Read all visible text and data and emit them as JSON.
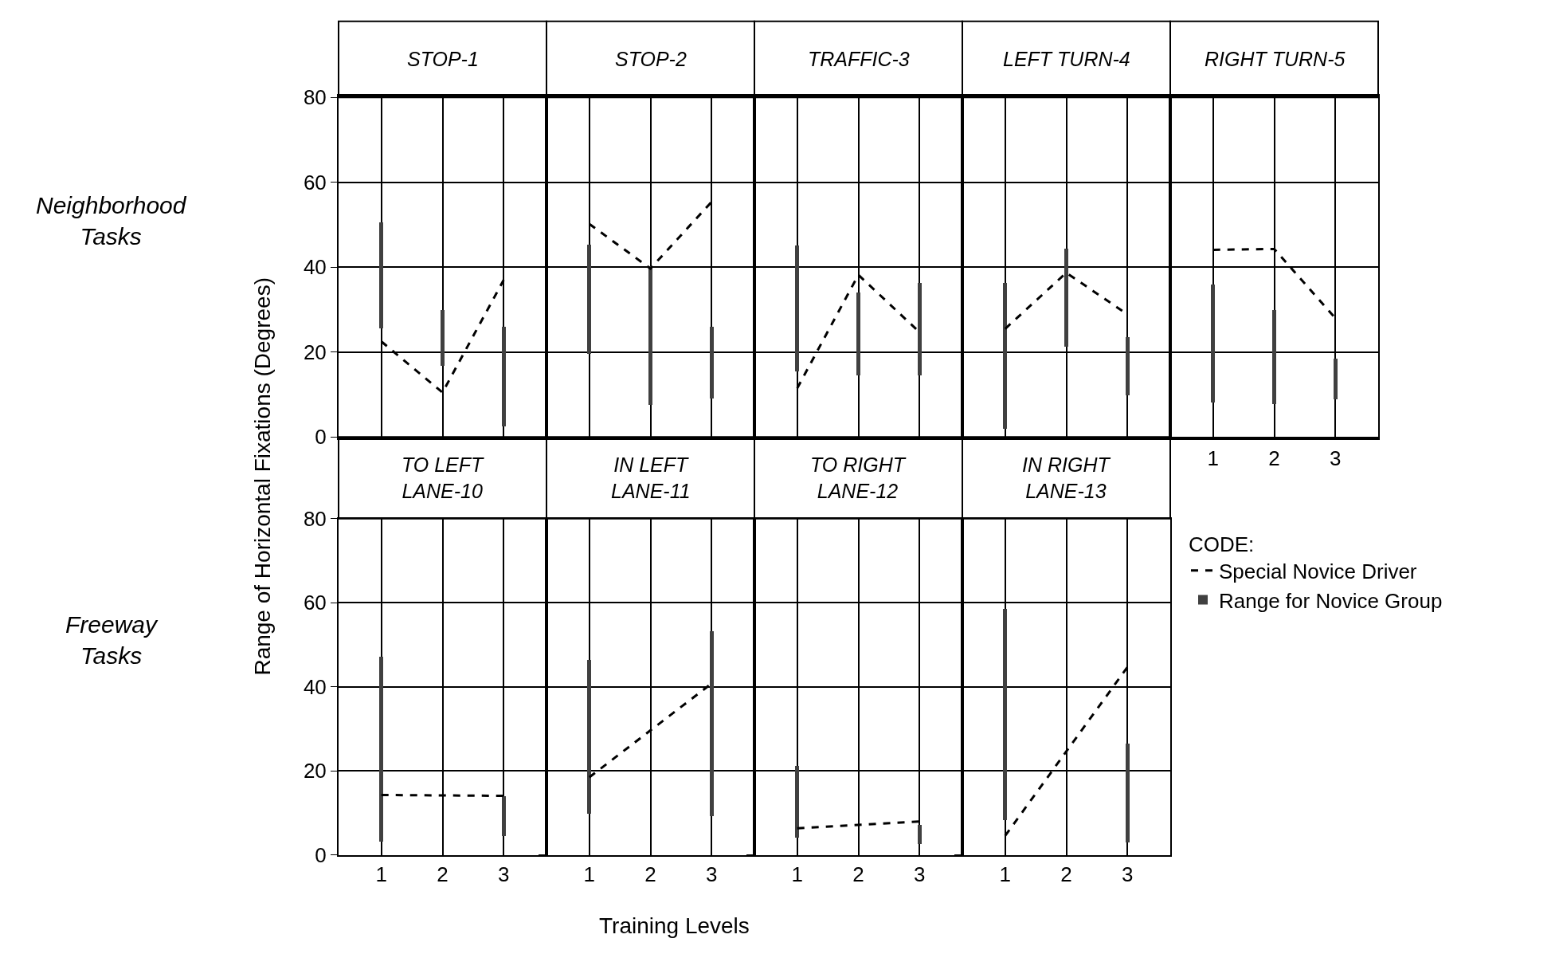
{
  "chart_data": [
    {
      "type": "bar",
      "title": "STOP-1",
      "ylabel": "Range of Horizontal Fixations (Degrees)",
      "annotations": [
        "Neighborhood\nTasks"
      ],
      "categories": [
        "1",
        "2",
        "3"
      ],
      "ylim": [
        0,
        80
      ],
      "yticks": [
        0,
        20,
        40,
        60,
        80
      ],
      "grid": true,
      "tick_labels": "y",
      "series": [
        {
          "color": "#404040",
          "base": [
            25.5,
            16.8,
            2.5
          ],
          "values": [
            25,
            13.1,
            23.5
          ]
        },
        {
          "type": "line",
          "color": "#000000",
          "line_style": "dashed",
          "marker": "none",
          "values": [
            22.5,
            10.5,
            37
          ]
        }
      ]
    },
    {
      "type": "bar",
      "title": "STOP-2",
      "categories": [
        "1",
        "2",
        "3"
      ],
      "ylim": [
        0,
        80
      ],
      "yticks": [
        0,
        20,
        40,
        60,
        80
      ],
      "grid": true,
      "tick_labels": false,
      "series": [
        {
          "color": "#404040",
          "base": [
            19.5,
            7.6,
            9.1
          ],
          "values": [
            25.8,
            32.6,
            16.8
          ]
        },
        {
          "type": "line",
          "color": "#000000",
          "line_style": "dashed",
          "marker": "none",
          "values": [
            50.2,
            39.7,
            55.4
          ]
        }
      ]
    },
    {
      "type": "bar",
      "title": "TRAFFIC-3",
      "categories": [
        "1",
        "2",
        "3"
      ],
      "ylim": [
        0,
        80
      ],
      "yticks": [
        0,
        20,
        40,
        60,
        80
      ],
      "grid": true,
      "tick_labels": false,
      "series": [
        {
          "color": "#404040",
          "base": [
            15.4,
            14.5,
            14.5
          ],
          "values": [
            29.7,
            19.5,
            21.8
          ]
        },
        {
          "type": "line",
          "color": "#000000",
          "line_style": "dashed",
          "marker": "none",
          "values": [
            11.5,
            38.2,
            24.7
          ]
        }
      ]
    },
    {
      "type": "bar",
      "title": "LEFT TURN-4",
      "categories": [
        "1",
        "2",
        "3"
      ],
      "ylim": [
        0,
        80
      ],
      "yticks": [
        0,
        20,
        40,
        60,
        80
      ],
      "grid": true,
      "tick_labels": false,
      "series": [
        {
          "color": "#404040",
          "base": [
            1.9,
            21.2,
            9.8
          ],
          "values": [
            34.3,
            23.1,
            13.7
          ]
        },
        {
          "type": "line",
          "color": "#000000",
          "line_style": "dashed",
          "marker": "none",
          "values": [
            25.5,
            38.7,
            28.9
          ]
        }
      ]
    },
    {
      "type": "bar",
      "title": "RIGHT TURN-5",
      "categories": [
        "1",
        "2",
        "3"
      ],
      "ylim": [
        0,
        80
      ],
      "yticks": [
        0,
        20,
        40,
        60,
        80
      ],
      "grid": true,
      "tick_labels": "x",
      "series": [
        {
          "color": "#404040",
          "base": [
            8.1,
            7.7,
            8.9
          ],
          "values": [
            27.7,
            22.1,
            9.6
          ]
        },
        {
          "type": "line",
          "color": "#000000",
          "line_style": "dashed",
          "marker": "none",
          "values": [
            44.1,
            44.3,
            28
          ]
        }
      ]
    },
    {
      "type": "bar",
      "title": "TO LEFT\nLANE-10",
      "annotations": [
        "Freeway\nTasks"
      ],
      "categories": [
        "1",
        "2",
        "3"
      ],
      "ylim": [
        0,
        80
      ],
      "yticks": [
        0,
        20,
        40,
        60,
        80
      ],
      "grid": true,
      "series": [
        {
          "color": "#404040",
          "base": [
            3.2,
            null,
            4.5
          ],
          "values": [
            44.1,
            null,
            9.6
          ]
        },
        {
          "type": "line",
          "color": "#000000",
          "line_style": "dashed",
          "marker": "none",
          "x": [
            "1",
            "3"
          ],
          "values": [
            14.3,
            14.1
          ]
        }
      ]
    },
    {
      "type": "bar",
      "title": "IN LEFT\nLANE-11",
      "xlabel": "Training Levels",
      "categories": [
        "1",
        "2",
        "3"
      ],
      "ylim": [
        0,
        80
      ],
      "yticks": [
        0,
        20,
        40,
        60,
        80
      ],
      "grid": true,
      "tick_labels": "x",
      "series": [
        {
          "color": "#404040",
          "base": [
            9.8,
            null,
            9.4
          ],
          "values": [
            36.7,
            null,
            43.8
          ]
        },
        {
          "type": "line",
          "color": "#000000",
          "line_style": "dashed",
          "marker": "none",
          "x": [
            "1",
            "3"
          ],
          "values": [
            18.5,
            40.8
          ]
        }
      ]
    },
    {
      "type": "bar",
      "title": "TO RIGHT\nLANE-12",
      "categories": [
        "1",
        "2",
        "3"
      ],
      "ylim": [
        0,
        80
      ],
      "yticks": [
        0,
        20,
        40,
        60,
        80
      ],
      "grid": true,
      "tick_labels": "x",
      "series": [
        {
          "color": "#404040",
          "base": [
            4.2,
            null,
            2.6
          ],
          "values": [
            17,
            null,
            4.7
          ]
        },
        {
          "type": "line",
          "color": "#000000",
          "line_style": "dashed",
          "marker": "none",
          "x": [
            "1",
            "3"
          ],
          "values": [
            6.4,
            8
          ]
        }
      ]
    },
    {
      "type": "bar",
      "title": "IN RIGHT\nLANE-13",
      "legend": "right",
      "legend_title": "CODE:",
      "categories": [
        "1",
        "2",
        "3"
      ],
      "ylim": [
        0,
        80
      ],
      "yticks": [
        0,
        20,
        40,
        60,
        80
      ],
      "grid": true,
      "tick_labels": "x",
      "series": [
        {
          "name": "Range for Novice Group",
          "color": "#404040",
          "base": [
            8.3,
            null,
            3.1
          ],
          "values": [
            50.3,
            null,
            23.5
          ]
        },
        {
          "name": "Special Novice Driver",
          "type": "line",
          "color": "#000000",
          "line_style": "dashed",
          "marker": "none",
          "x": [
            "1",
            "3"
          ],
          "values": [
            4.6,
            44.7
          ]
        }
      ]
    }
  ]
}
